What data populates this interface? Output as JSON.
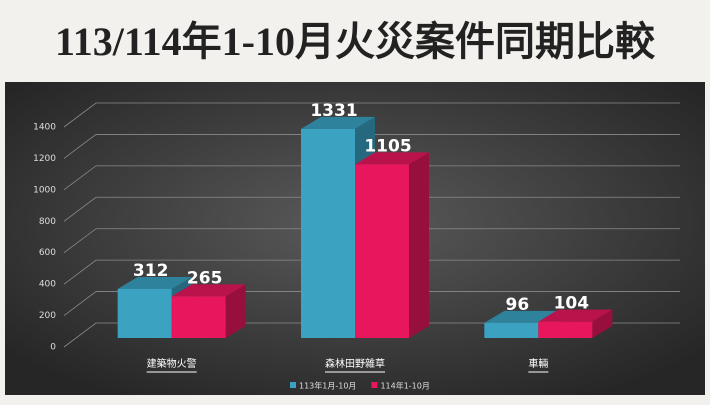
{
  "chart_data": {
    "type": "bar",
    "title": "113/114年1-10月火災案件同期比較",
    "categories": [
      "建築物火警",
      "森林田野雜草",
      "車輛"
    ],
    "series": [
      {
        "name": "113年1月-10月",
        "color": "#3ba2c2",
        "values": [
          312,
          1331,
          96
        ]
      },
      {
        "name": "114年1-10月",
        "color": "#e8175d",
        "values": [
          265,
          1105,
          104
        ]
      }
    ],
    "ylim": [
      0,
      1400
    ],
    "yticks": [
      0,
      200,
      400,
      600,
      800,
      1000,
      1200,
      1400
    ],
    "grid": true,
    "legend": "bottom"
  }
}
